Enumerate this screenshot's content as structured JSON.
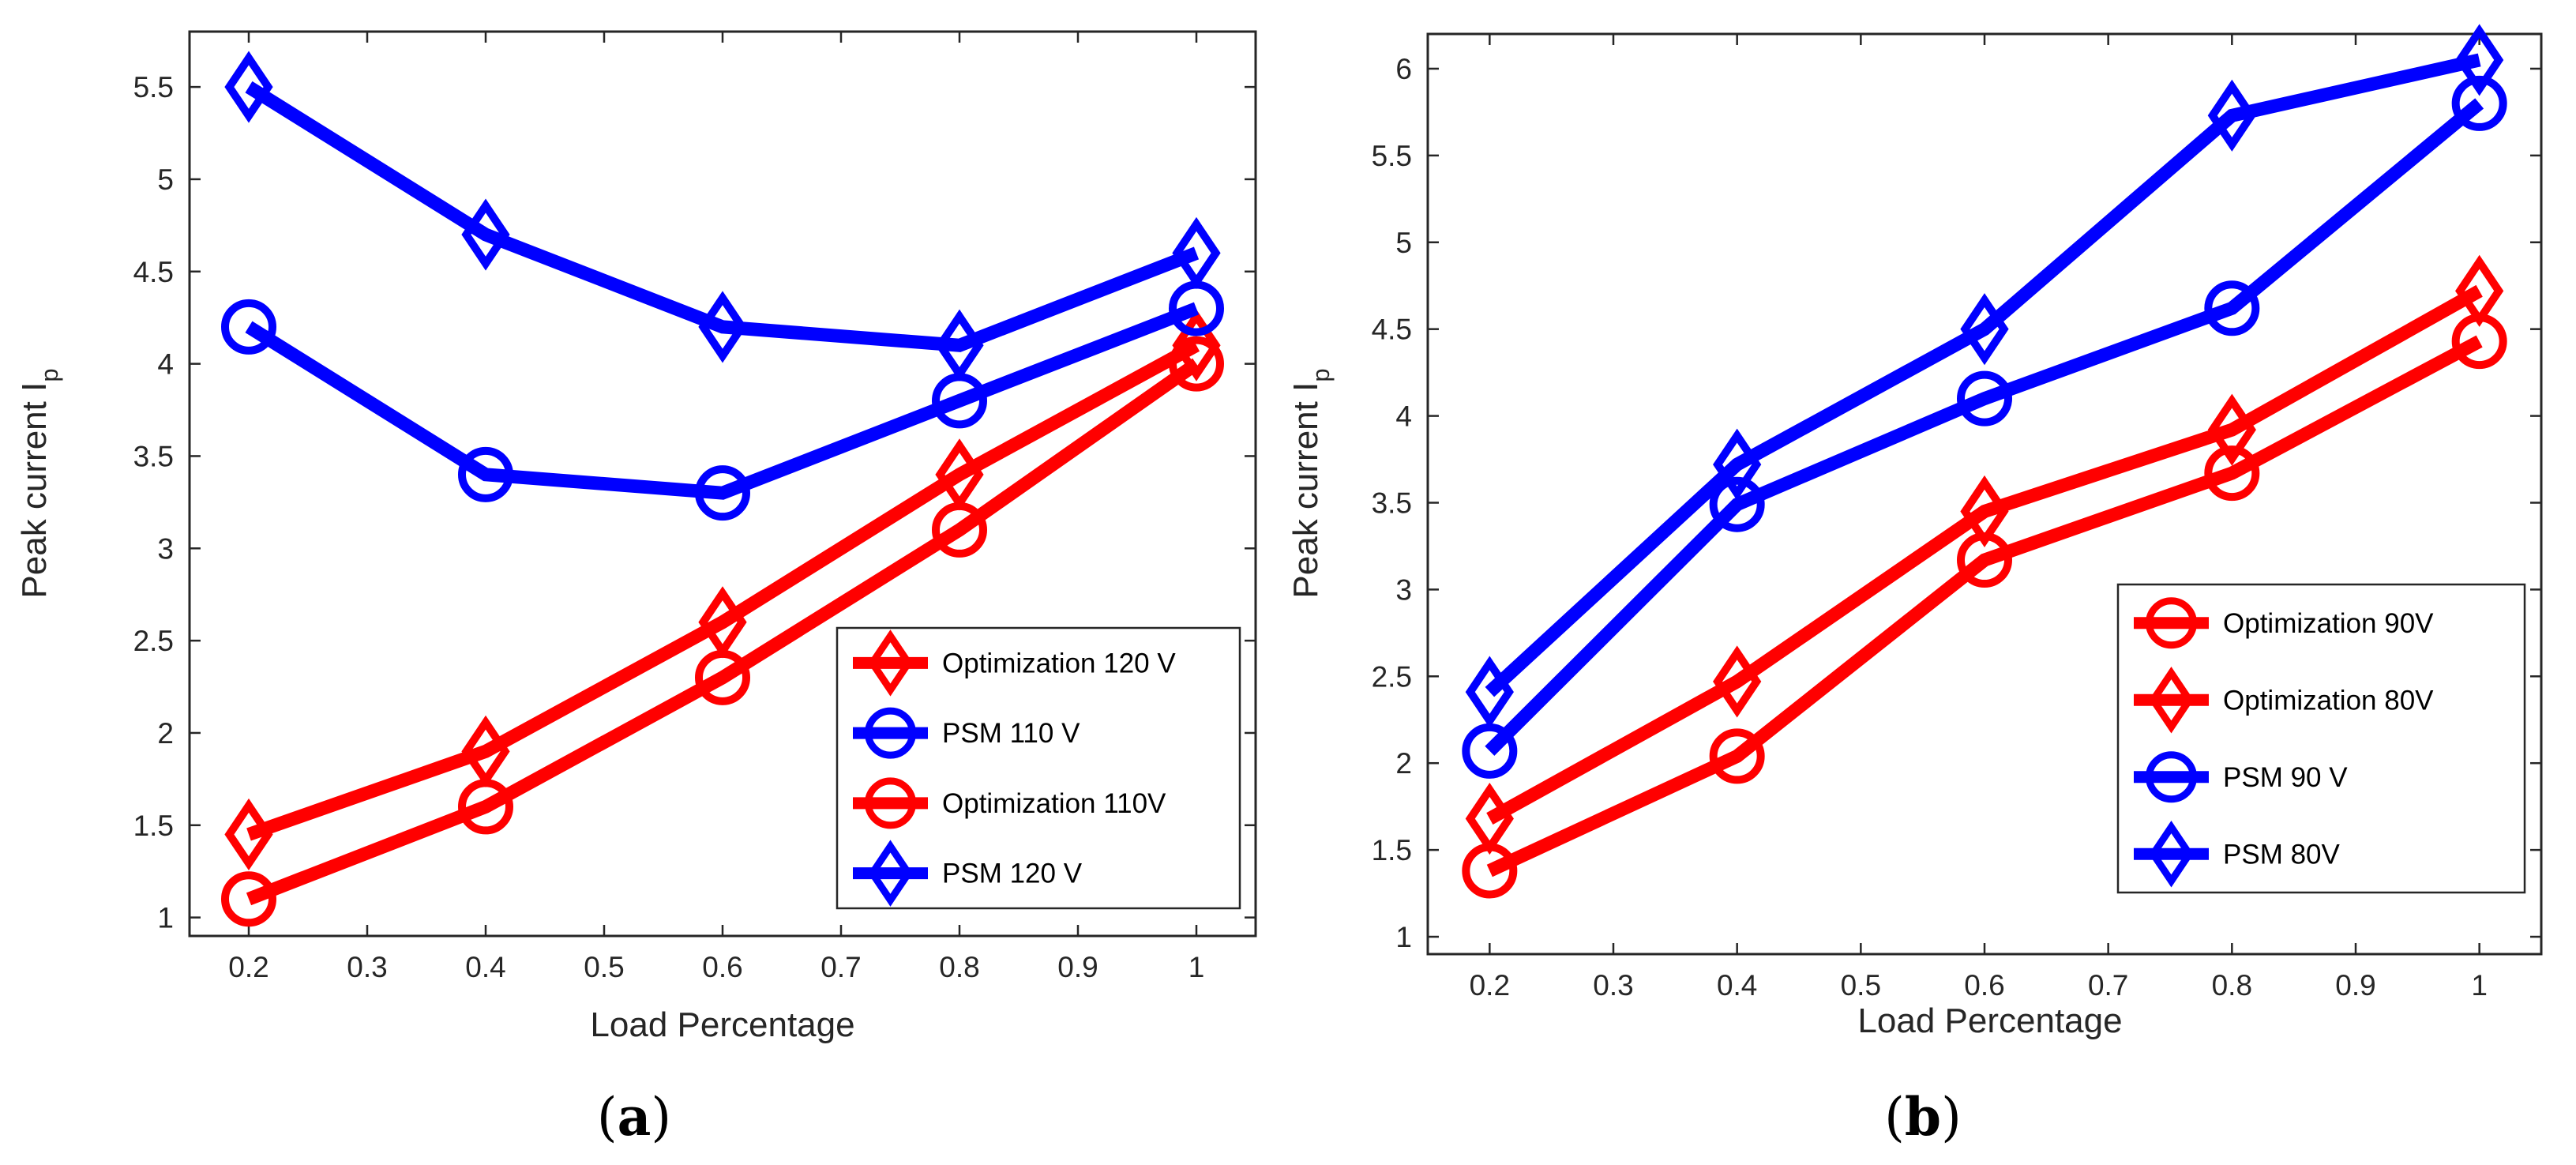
{
  "chart_data": [
    {
      "type": "line",
      "panel_label": "(a)",
      "panel_label_letter": "a",
      "xlabel": "Load Percentage",
      "ylabel": "Peak current I",
      "ylabel_subscript": "p",
      "xlim": [
        0.15,
        1.05
      ],
      "ylim": [
        0.9,
        5.8
      ],
      "xticks": [
        0.2,
        0.3,
        0.4,
        0.5,
        0.6,
        0.7,
        0.8,
        0.9,
        1
      ],
      "xtick_labels": [
        "0.2",
        "0.3",
        "0.4",
        "0.5",
        "0.6",
        "0.7",
        "0.8",
        "0.9",
        "1"
      ],
      "yticks": [
        1,
        1.5,
        2,
        2.5,
        3,
        3.5,
        4,
        4.5,
        5,
        5.5
      ],
      "ytick_labels": [
        "1",
        "1.5",
        "2",
        "2.5",
        "3",
        "3.5",
        "4",
        "4.5",
        "5",
        "5.5"
      ],
      "legend_position": "bottom-right",
      "x": [
        0.2,
        0.4,
        0.6,
        0.8,
        1.0
      ],
      "series": [
        {
          "name": "Optimization 120 V",
          "color": "#ff0000",
          "marker": "diamond",
          "values": [
            1.45,
            1.9,
            2.6,
            3.4,
            4.1
          ]
        },
        {
          "name": "PSM 110 V",
          "color": "#0000ff",
          "marker": "circle",
          "values": [
            4.2,
            3.4,
            3.3,
            3.8,
            4.3
          ]
        },
        {
          "name": "Optimization 110V",
          "color": "#ff0000",
          "marker": "circle",
          "values": [
            1.1,
            1.6,
            2.3,
            3.1,
            4.0
          ]
        },
        {
          "name": "PSM 120 V",
          "color": "#0000ff",
          "marker": "diamond",
          "values": [
            5.5,
            4.7,
            4.2,
            4.1,
            4.6
          ]
        }
      ]
    },
    {
      "type": "line",
      "panel_label": "(b)",
      "panel_label_letter": "b",
      "xlabel": "Load Percentage",
      "ylabel": "Peak current I",
      "ylabel_subscript": "p",
      "xlim": [
        0.15,
        1.05
      ],
      "ylim": [
        0.9,
        6.2
      ],
      "xticks": [
        0.2,
        0.3,
        0.4,
        0.5,
        0.6,
        0.7,
        0.8,
        0.9,
        1
      ],
      "xtick_labels": [
        "0.2",
        "0.3",
        "0.4",
        "0.5",
        "0.6",
        "0.7",
        "0.8",
        "0.9",
        "1"
      ],
      "yticks": [
        1,
        1.5,
        2,
        2.5,
        3,
        3.5,
        4,
        4.5,
        5,
        5.5,
        6
      ],
      "ytick_labels": [
        "1",
        "1.5",
        "2",
        "2.5",
        "3",
        "3.5",
        "4",
        "4.5",
        "5",
        "5.5",
        "6"
      ],
      "legend_position": "bottom-right",
      "x": [
        0.2,
        0.4,
        0.6,
        0.8,
        1.0
      ],
      "series": [
        {
          "name": "Optimization 90V",
          "color": "#ff0000",
          "marker": "circle",
          "values": [
            1.38,
            2.04,
            3.17,
            3.67,
            4.43
          ]
        },
        {
          "name": "Optimization 80V",
          "color": "#ff0000",
          "marker": "diamond",
          "values": [
            1.68,
            2.47,
            3.45,
            3.92,
            4.72
          ]
        },
        {
          "name": "PSM 90 V",
          "color": "#0000ff",
          "marker": "circle",
          "values": [
            2.07,
            3.49,
            4.1,
            4.62,
            5.8
          ]
        },
        {
          "name": "PSM 80V",
          "color": "#0000ff",
          "marker": "diamond",
          "values": [
            2.41,
            3.72,
            4.5,
            5.73,
            6.05
          ]
        }
      ]
    }
  ]
}
